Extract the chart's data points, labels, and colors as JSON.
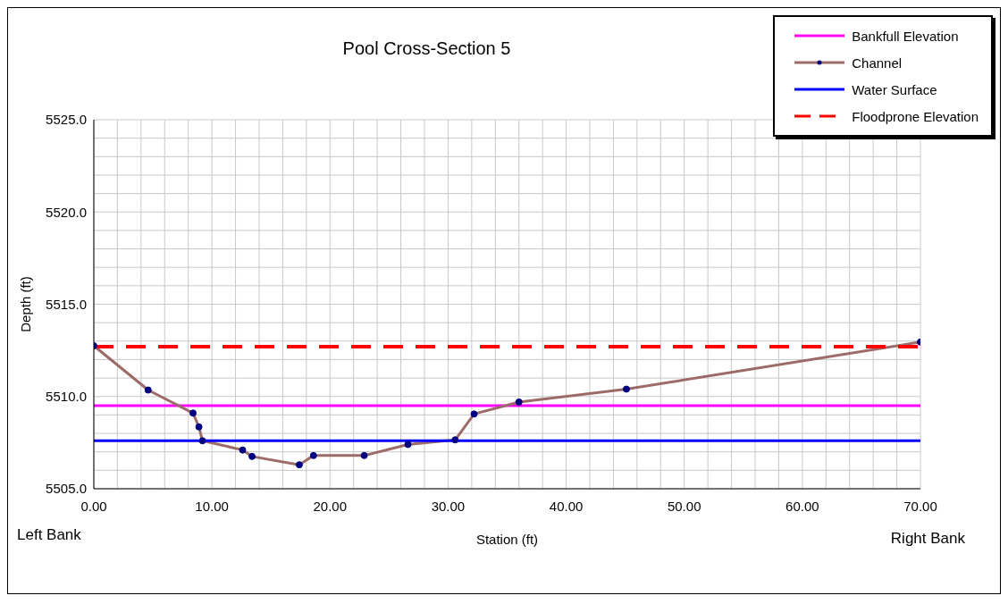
{
  "chart_data": {
    "type": "line",
    "title": "Pool Cross-Section 5",
    "xlabel": "Station (ft)",
    "ylabel": "Depth (ft)",
    "annotations": [
      "Left Bank",
      "Right Bank"
    ],
    "xlim": [
      0,
      70
    ],
    "ylim": [
      5505,
      5525
    ],
    "xticks": [
      {
        "value": 0,
        "label": "0.00"
      },
      {
        "value": 2,
        "label": null
      },
      {
        "value": 4,
        "label": null
      },
      {
        "value": 6,
        "label": null
      },
      {
        "value": 8,
        "label": null
      },
      {
        "value": 10,
        "label": "10.00"
      },
      {
        "value": 12,
        "label": null
      },
      {
        "value": 14,
        "label": null
      },
      {
        "value": 16,
        "label": null
      },
      {
        "value": 18,
        "label": null
      },
      {
        "value": 20,
        "label": "20.00"
      },
      {
        "value": 22,
        "label": null
      },
      {
        "value": 24,
        "label": null
      },
      {
        "value": 26,
        "label": null
      },
      {
        "value": 28,
        "label": null
      },
      {
        "value": 30,
        "label": "30.00"
      },
      {
        "value": 32,
        "label": null
      },
      {
        "value": 34,
        "label": null
      },
      {
        "value": 36,
        "label": null
      },
      {
        "value": 38,
        "label": null
      },
      {
        "value": 40,
        "label": "40.00"
      },
      {
        "value": 42,
        "label": null
      },
      {
        "value": 44,
        "label": null
      },
      {
        "value": 46,
        "label": null
      },
      {
        "value": 48,
        "label": null
      },
      {
        "value": 50,
        "label": "50.00"
      },
      {
        "value": 52,
        "label": null
      },
      {
        "value": 54,
        "label": null
      },
      {
        "value": 56,
        "label": null
      },
      {
        "value": 58,
        "label": null
      },
      {
        "value": 60,
        "label": "60.00"
      },
      {
        "value": 62,
        "label": null
      },
      {
        "value": 64,
        "label": null
      },
      {
        "value": 66,
        "label": null
      },
      {
        "value": 68,
        "label": null
      },
      {
        "value": 70,
        "label": "70.00"
      }
    ],
    "yticks": [
      {
        "value": 5505,
        "label": "5505.0"
      },
      {
        "value": 5506,
        "label": null
      },
      {
        "value": 5507,
        "label": null
      },
      {
        "value": 5508,
        "label": null
      },
      {
        "value": 5509,
        "label": null
      },
      {
        "value": 5510,
        "label": "5510.0"
      },
      {
        "value": 5511,
        "label": null
      },
      {
        "value": 5512,
        "label": null
      },
      {
        "value": 5513,
        "label": null
      },
      {
        "value": 5514,
        "label": null
      },
      {
        "value": 5515,
        "label": "5515.0"
      },
      {
        "value": 5516,
        "label": null
      },
      {
        "value": 5517,
        "label": null
      },
      {
        "value": 5518,
        "label": null
      },
      {
        "value": 5519,
        "label": null
      },
      {
        "value": 5520,
        "label": "5520.0"
      },
      {
        "value": 5521,
        "label": null
      },
      {
        "value": 5522,
        "label": null
      },
      {
        "value": 5523,
        "label": null
      },
      {
        "value": 5524,
        "label": null
      },
      {
        "value": 5525,
        "label": "5525.0"
      }
    ],
    "grid": true,
    "legend": "top right",
    "series": [
      {
        "name": "Bankfull Elevation",
        "color": "#ff00ff",
        "x": [
          0,
          70
        ],
        "values": [
          5509.5,
          5509.5
        ],
        "marker": "none",
        "line_style": "solid"
      },
      {
        "name": "Channel",
        "color": "#9c6b68",
        "x": [
          0,
          4.6,
          8.4,
          8.9,
          9.2,
          12.6,
          13.4,
          17.4,
          18.6,
          22.9,
          26.6,
          30.6,
          32.2,
          36.0,
          45.1,
          70
        ],
        "values": [
          5512.75,
          5510.35,
          5509.1,
          5508.35,
          5507.6,
          5507.1,
          5506.75,
          5506.3,
          5506.8,
          5506.8,
          5507.4,
          5507.65,
          5509.05,
          5509.7,
          5510.4,
          5512.95
        ],
        "marker": "circle",
        "line_style": "solid"
      },
      {
        "name": "Water Surface",
        "color": "#0000ff",
        "x": [
          0,
          70
        ],
        "values": [
          5507.6,
          5507.6
        ],
        "marker": "none",
        "line_style": "solid"
      },
      {
        "name": "Floodprone Elevation",
        "color": "#ff0000",
        "x": [
          0,
          70
        ],
        "values": [
          5512.7,
          5512.7
        ],
        "marker": "none",
        "line_style": "dashed"
      }
    ]
  }
}
